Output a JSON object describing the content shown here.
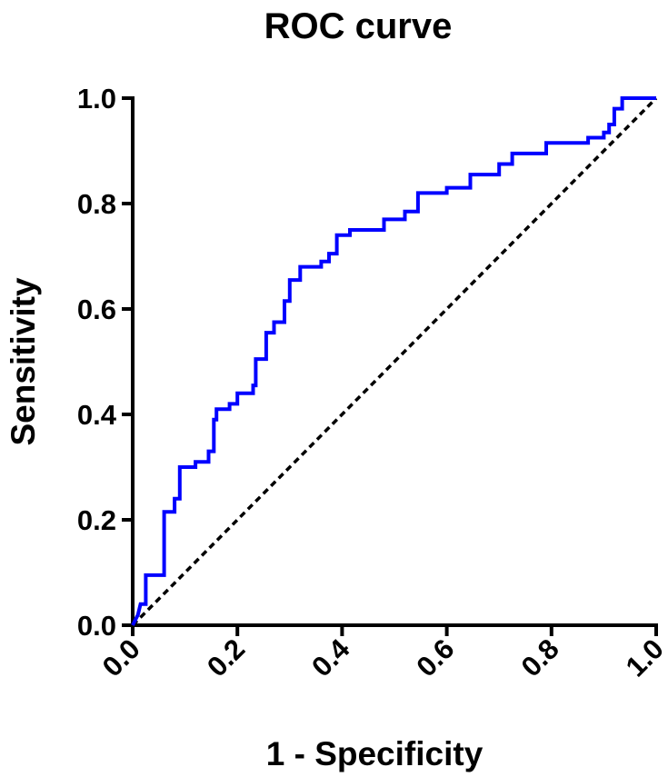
{
  "chart_data": {
    "type": "line",
    "title": "ROC curve",
    "xlabel": "1 - Specificity",
    "ylabel": "Sensitivity",
    "xlim": [
      0,
      1
    ],
    "ylim": [
      0,
      1
    ],
    "xticks": [
      "0.0",
      "0.2",
      "0.4",
      "0.6",
      "0.8",
      "1.0"
    ],
    "yticks": [
      "0.0",
      "0.2",
      "0.4",
      "0.6",
      "0.8",
      "1.0"
    ],
    "grid": false,
    "series": [
      {
        "color": "#0000ff",
        "style": "solid",
        "points": [
          [
            0.0,
            0.0
          ],
          [
            0.01,
            0.02
          ],
          [
            0.015,
            0.04
          ],
          [
            0.025,
            0.04
          ],
          [
            0.025,
            0.095
          ],
          [
            0.06,
            0.095
          ],
          [
            0.06,
            0.215
          ],
          [
            0.08,
            0.215
          ],
          [
            0.08,
            0.24
          ],
          [
            0.09,
            0.24
          ],
          [
            0.09,
            0.3
          ],
          [
            0.12,
            0.3
          ],
          [
            0.12,
            0.31
          ],
          [
            0.145,
            0.31
          ],
          [
            0.145,
            0.33
          ],
          [
            0.155,
            0.33
          ],
          [
            0.155,
            0.39
          ],
          [
            0.16,
            0.39
          ],
          [
            0.16,
            0.41
          ],
          [
            0.185,
            0.41
          ],
          [
            0.185,
            0.42
          ],
          [
            0.2,
            0.42
          ],
          [
            0.2,
            0.44
          ],
          [
            0.23,
            0.44
          ],
          [
            0.23,
            0.455
          ],
          [
            0.235,
            0.455
          ],
          [
            0.235,
            0.505
          ],
          [
            0.255,
            0.505
          ],
          [
            0.255,
            0.555
          ],
          [
            0.27,
            0.555
          ],
          [
            0.27,
            0.575
          ],
          [
            0.29,
            0.575
          ],
          [
            0.29,
            0.615
          ],
          [
            0.3,
            0.615
          ],
          [
            0.3,
            0.655
          ],
          [
            0.32,
            0.655
          ],
          [
            0.32,
            0.68
          ],
          [
            0.36,
            0.68
          ],
          [
            0.36,
            0.69
          ],
          [
            0.375,
            0.69
          ],
          [
            0.375,
            0.705
          ],
          [
            0.39,
            0.705
          ],
          [
            0.39,
            0.74
          ],
          [
            0.415,
            0.74
          ],
          [
            0.415,
            0.75
          ],
          [
            0.48,
            0.75
          ],
          [
            0.48,
            0.77
          ],
          [
            0.52,
            0.77
          ],
          [
            0.52,
            0.785
          ],
          [
            0.545,
            0.785
          ],
          [
            0.545,
            0.82
          ],
          [
            0.6,
            0.82
          ],
          [
            0.6,
            0.83
          ],
          [
            0.645,
            0.83
          ],
          [
            0.645,
            0.855
          ],
          [
            0.7,
            0.855
          ],
          [
            0.7,
            0.875
          ],
          [
            0.725,
            0.875
          ],
          [
            0.725,
            0.895
          ],
          [
            0.79,
            0.895
          ],
          [
            0.79,
            0.915
          ],
          [
            0.87,
            0.915
          ],
          [
            0.87,
            0.925
          ],
          [
            0.9,
            0.925
          ],
          [
            0.9,
            0.935
          ],
          [
            0.91,
            0.935
          ],
          [
            0.91,
            0.95
          ],
          [
            0.92,
            0.95
          ],
          [
            0.92,
            0.98
          ],
          [
            0.935,
            0.98
          ],
          [
            0.935,
            1.0
          ],
          [
            1.0,
            1.0
          ]
        ]
      },
      {
        "color": "#000000",
        "style": "dashed",
        "points": [
          [
            0.0,
            0.0
          ],
          [
            1.0,
            1.0
          ]
        ]
      }
    ]
  }
}
